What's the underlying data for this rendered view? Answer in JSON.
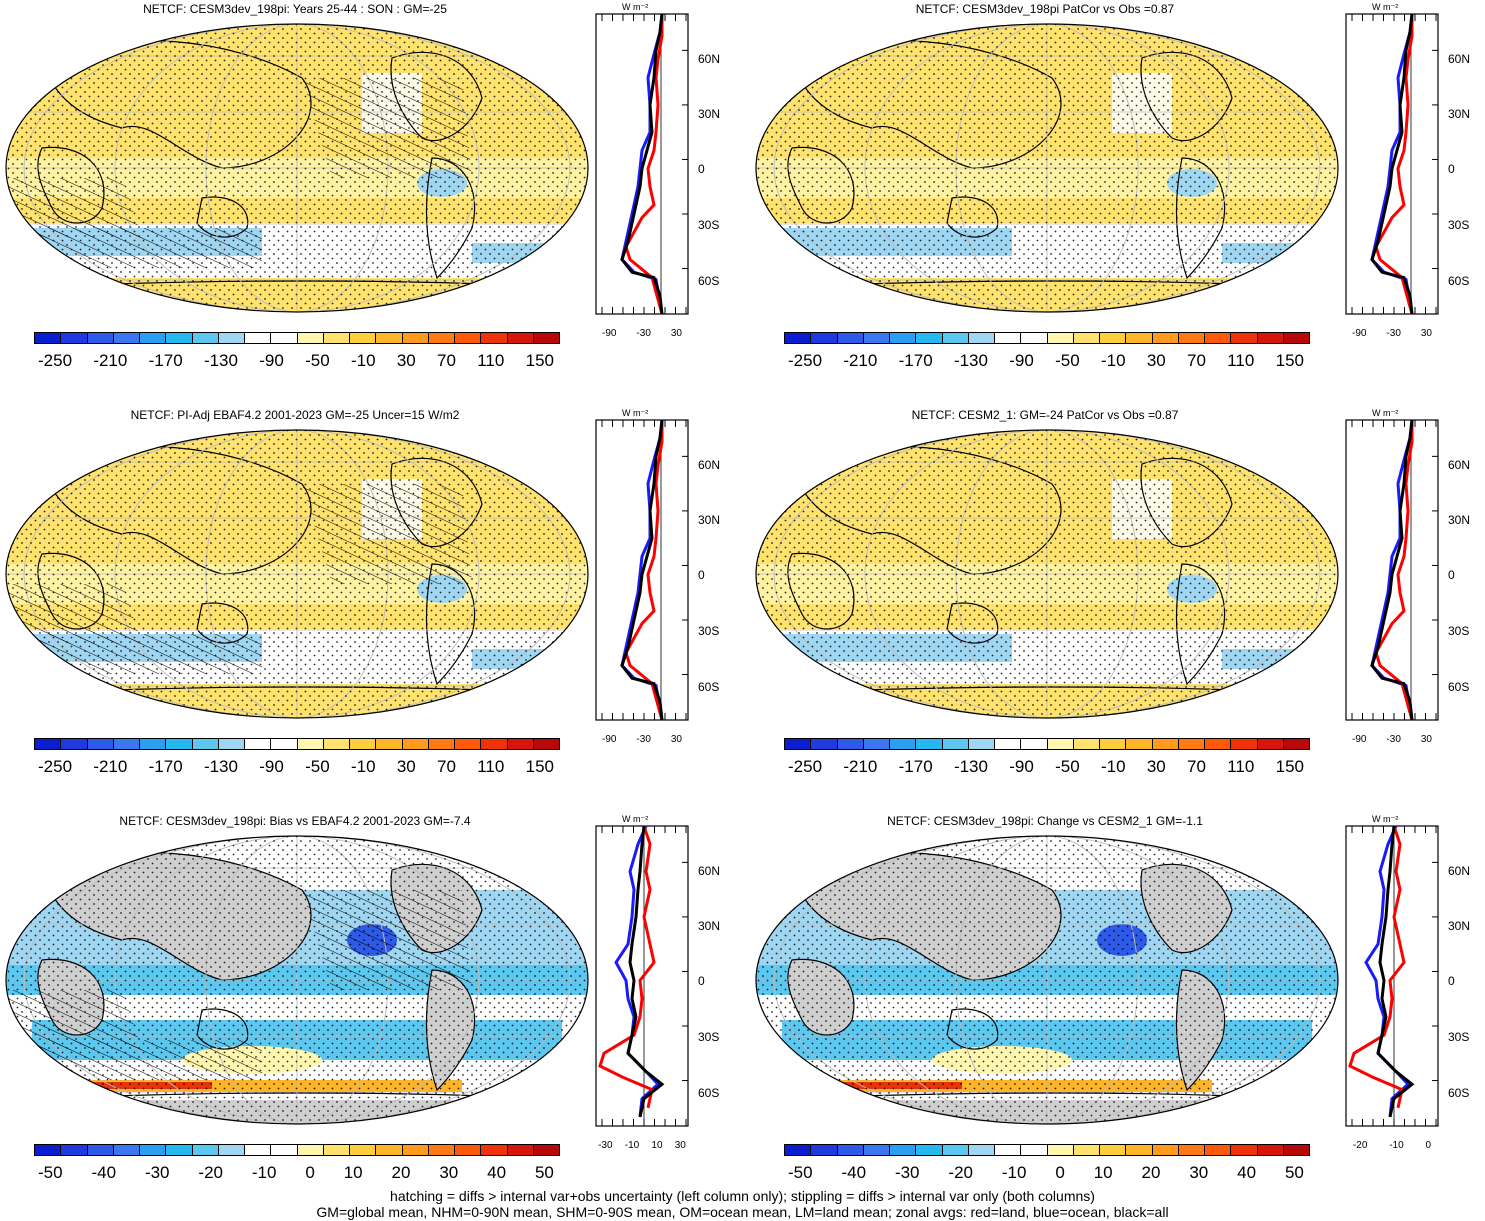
{
  "panels": [
    {
      "title": "NETCF: CESM3dev_198pi: Years 25-44 : SON : GM=-25",
      "colorbar_labels": [
        "-250",
        "-210",
        "-170",
        "-130",
        "-90",
        "-50",
        "-10",
        "30",
        "70",
        "110",
        "150"
      ],
      "zonal_x_ticks": [
        "-90",
        "-30",
        "30"
      ],
      "zonal_units": "W m⁻²",
      "hatching": true,
      "scheme": "abs"
    },
    {
      "title": "NETCF: CESM3dev_198pi PatCor vs Obs =0.87",
      "colorbar_labels": [
        "-250",
        "-210",
        "-170",
        "-130",
        "-90",
        "-50",
        "-10",
        "30",
        "70",
        "110",
        "150"
      ],
      "zonal_x_ticks": [
        "-90",
        "-30",
        "30"
      ],
      "zonal_units": "W m⁻²",
      "hatching": false,
      "scheme": "abs"
    },
    {
      "title": "NETCF: PI-Adj EBAF4.2 2001-2023 GM=-25 Uncer=15 W/m2",
      "colorbar_labels": [
        "-250",
        "-210",
        "-170",
        "-130",
        "-90",
        "-50",
        "-10",
        "30",
        "70",
        "110",
        "150"
      ],
      "zonal_x_ticks": [
        "-90",
        "-30",
        "30"
      ],
      "zonal_units": "W m⁻²",
      "hatching": true,
      "scheme": "abs"
    },
    {
      "title": "NETCF: CESM2_1: GM=-24 PatCor vs Obs =0.87",
      "colorbar_labels": [
        "-250",
        "-210",
        "-170",
        "-130",
        "-90",
        "-50",
        "-10",
        "30",
        "70",
        "110",
        "150"
      ],
      "zonal_x_ticks": [
        "-90",
        "-30",
        "30"
      ],
      "zonal_units": "W m⁻²",
      "hatching": false,
      "scheme": "abs"
    },
    {
      "title": "NETCF: CESM3dev_198pi: Bias vs EBAF4.2 2001-2023  GM=-7.4",
      "colorbar_labels": [
        "-50",
        "-40",
        "-30",
        "-20",
        "-10",
        "0",
        "10",
        "20",
        "30",
        "40",
        "50"
      ],
      "zonal_x_ticks": [
        "-30",
        "-10",
        "10",
        "30"
      ],
      "zonal_units": "W m⁻²",
      "hatching": true,
      "scheme": "diff"
    },
    {
      "title": "NETCF: CESM3dev_198pi: Change vs CESM2_1 GM=-1.1",
      "colorbar_labels": [
        "-50",
        "-40",
        "-30",
        "-20",
        "-10",
        "0",
        "10",
        "20",
        "30",
        "40",
        "50"
      ],
      "zonal_x_ticks": [
        "-20",
        "-10",
        "0"
      ],
      "zonal_units": "W m⁻²",
      "hatching": false,
      "scheme": "diff"
    }
  ],
  "lat_labels": [
    "60N",
    "30N",
    "0",
    "30S",
    "60S"
  ],
  "colorbar_colors": [
    "#0b1ecf",
    "#1f3be0",
    "#2d5ae8",
    "#3b78f0",
    "#2a9ff2",
    "#25b9f0",
    "#5cc8f0",
    "#9fd6f2",
    "#ffffff",
    "#ffffff",
    "#fff6b0",
    "#ffe36e",
    "#ffce3c",
    "#ffb52a",
    "#ff9a1e",
    "#ff7a14",
    "#ff5a0c",
    "#f0320a",
    "#d8150a",
    "#b80808"
  ],
  "land_color": "#cfcfcf",
  "footer": {
    "line1": "hatching = diffs > internal var+obs uncertainty (left column only); stippling = diffs > internal var only (both columns)",
    "line2": "GM=global mean, NHM=0-90N mean, SHM=0-90S mean, OM=ocean mean, LM=land mean; zonal avgs: red=land, blue=ocean, black=all"
  }
}
